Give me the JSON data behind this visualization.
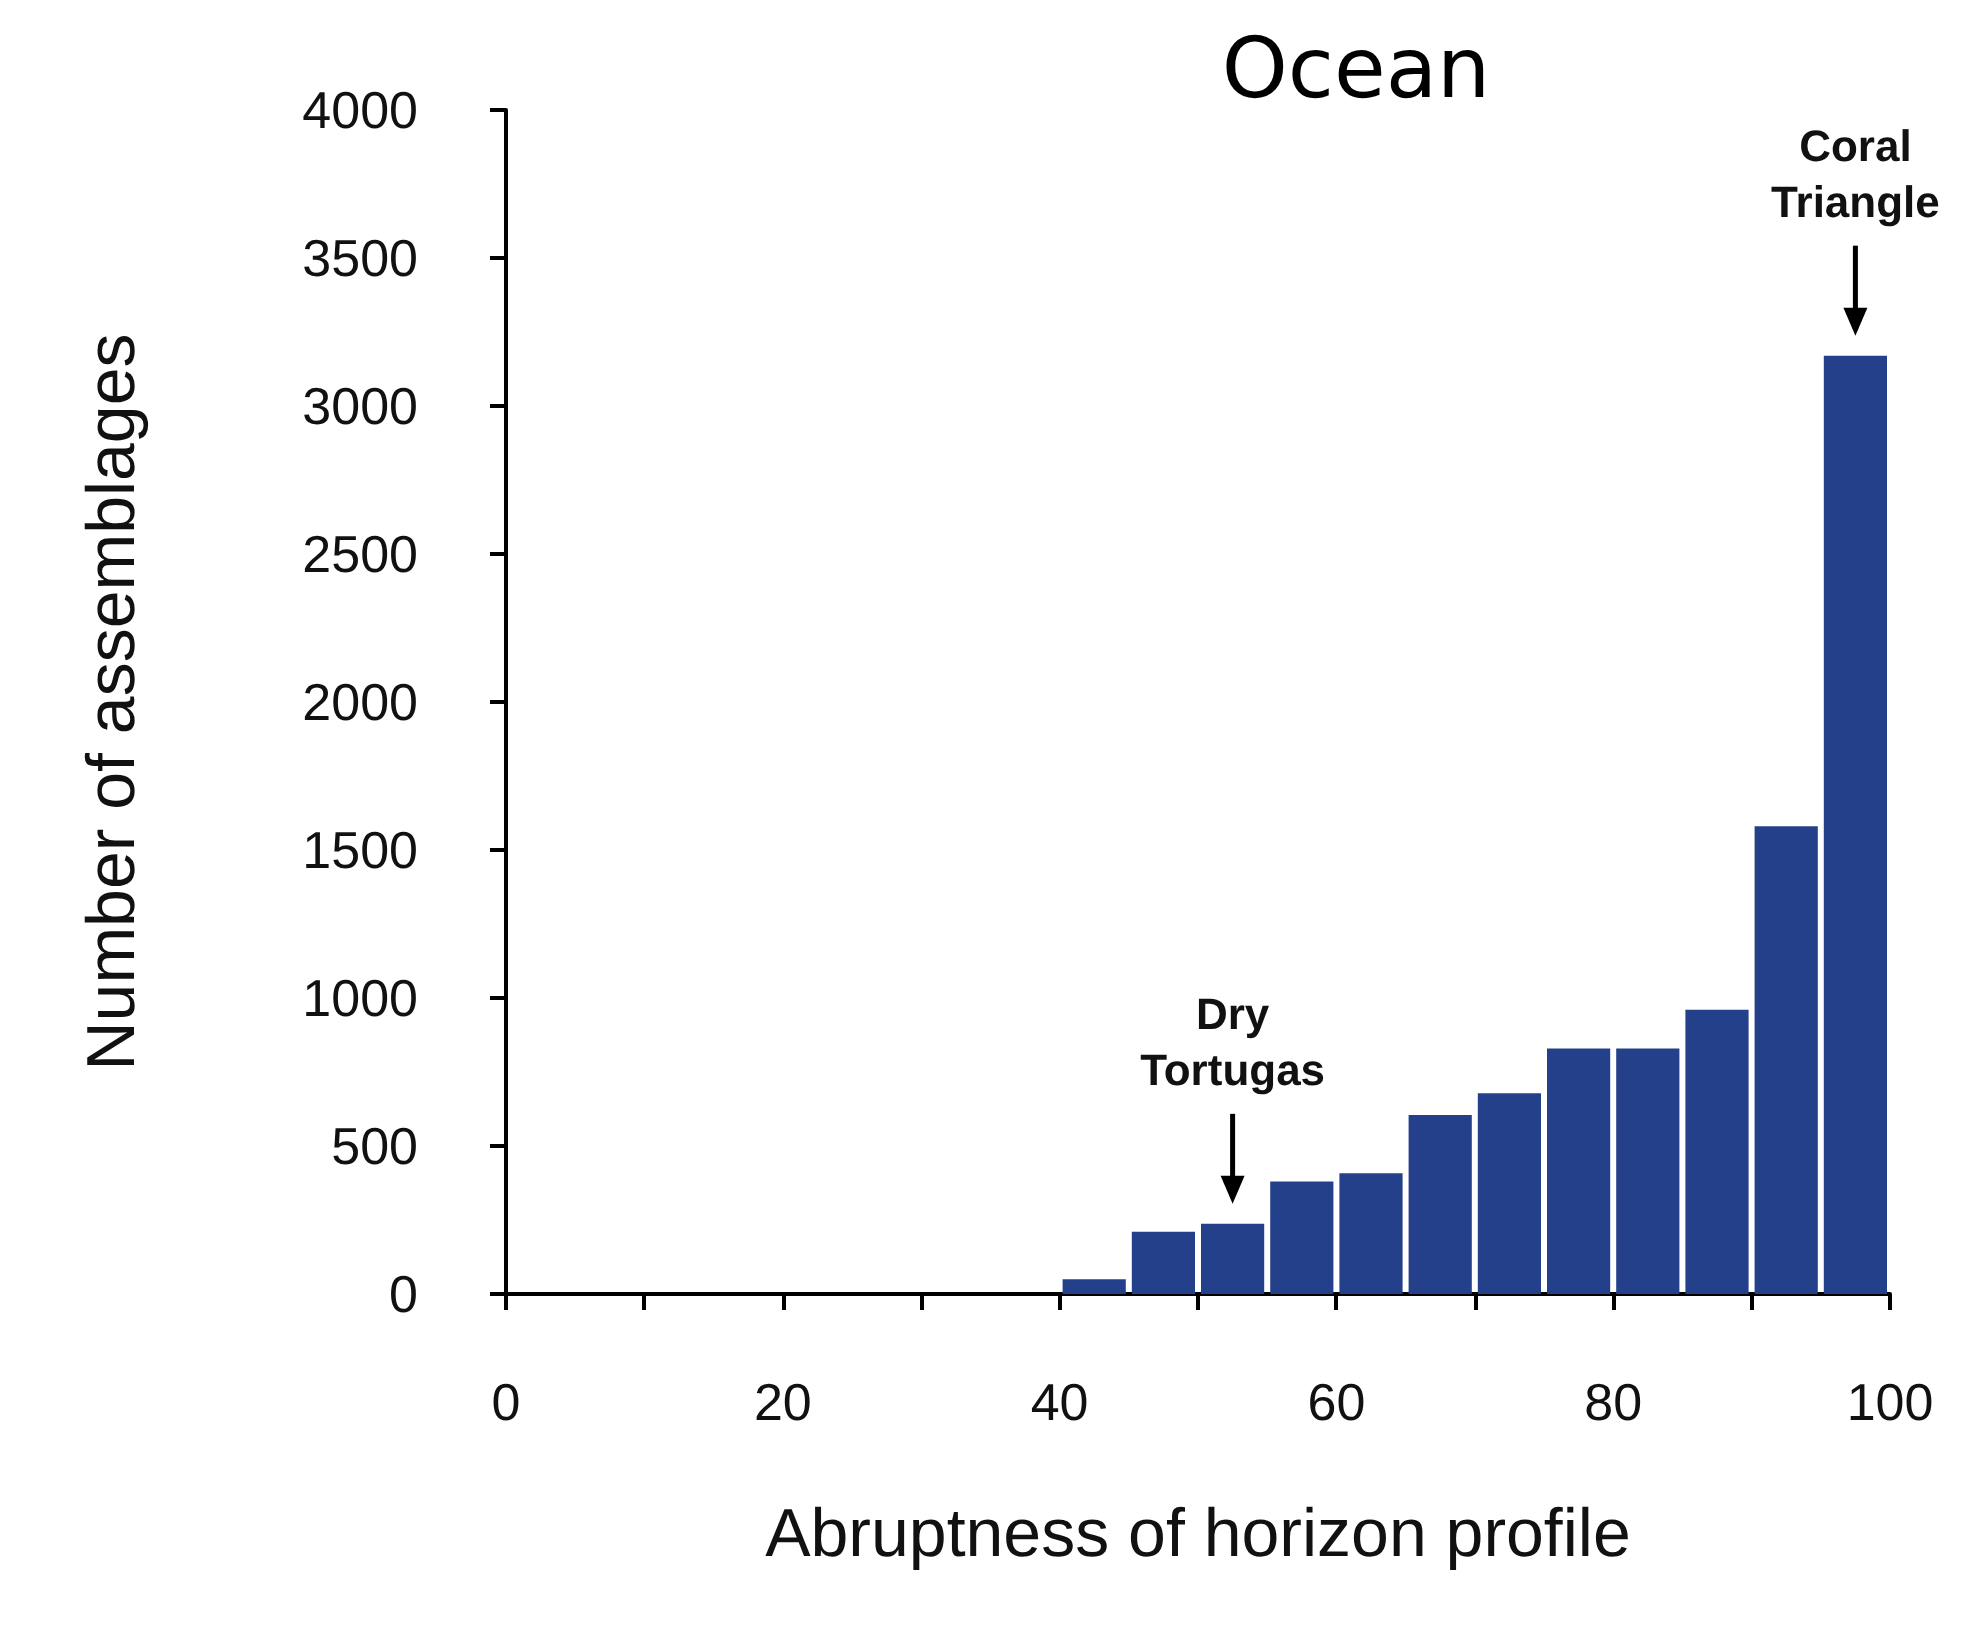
{
  "chart_data": {
    "type": "histogram",
    "title": "Ocean",
    "xlabel": "Abruptness of horizon profile",
    "ylabel": "Number of assemblages",
    "bins": [
      40,
      45,
      50,
      55,
      60,
      65,
      70,
      75,
      80,
      85,
      90,
      95,
      100
    ],
    "values": [
      50,
      210,
      237,
      380,
      408,
      605,
      678,
      829,
      829,
      960,
      1580,
      3170
    ],
    "color": "#25408a",
    "xlim": [
      0,
      100
    ],
    "xticks": [
      0,
      {
        "value": 10,
        "label": null
      },
      20,
      {
        "value": 30,
        "label": null
      },
      40,
      {
        "value": 50,
        "label": null
      },
      60,
      {
        "value": 70,
        "label": null
      },
      80,
      {
        "value": 90,
        "label": null
      },
      100
    ],
    "ylim": [
      0,
      4000
    ],
    "yticks": [
      0,
      500,
      1000,
      1500,
      2000,
      2500,
      3000,
      3500,
      4000
    ],
    "grid": false,
    "annotations": [
      {
        "text": "Dry\nTortugas",
        "x": 52.5,
        "y": 237
      },
      {
        "text": "Coral\nTriangle",
        "x": 97.5,
        "y": 3170
      }
    ]
  }
}
